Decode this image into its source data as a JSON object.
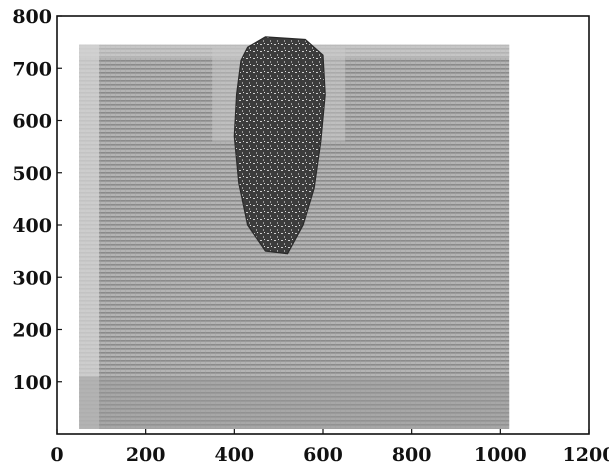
{
  "chart_data": {
    "type": "heatmap",
    "title": "",
    "xlabel": "",
    "ylabel": "",
    "xlim": [
      0,
      1200
    ],
    "ylim": [
      0,
      800
    ],
    "x_ticks": [
      0,
      200,
      400,
      600,
      800,
      1000,
      1200
    ],
    "x_tick_labels": [
      "0",
      "200",
      "400",
      "600",
      "800",
      "1000",
      "1200"
    ],
    "y_ticks": [
      100,
      200,
      300,
      400,
      500,
      600,
      700,
      800
    ],
    "y_tick_labels": [
      "100",
      "200",
      "300",
      "400",
      "500",
      "600",
      "700",
      "800"
    ],
    "grid": false,
    "field_extent": {
      "x": [
        50,
        1020
      ],
      "y": [
        10,
        745
      ]
    },
    "dark_region": {
      "description_shape": "plume",
      "x_range": [
        400,
        620
      ],
      "y_range": [
        340,
        760
      ],
      "outline": [
        [
          430,
          740
        ],
        [
          470,
          760
        ],
        [
          560,
          755
        ],
        [
          600,
          725
        ],
        [
          605,
          650
        ],
        [
          595,
          560
        ],
        [
          580,
          470
        ],
        [
          555,
          400
        ],
        [
          520,
          345
        ],
        [
          470,
          350
        ],
        [
          430,
          400
        ],
        [
          410,
          480
        ],
        [
          400,
          570
        ],
        [
          405,
          650
        ],
        [
          415,
          715
        ]
      ]
    },
    "colors": {
      "background_field": "#a6a6a6",
      "light_band": "#d6d6d6",
      "dark_region": "#3a3a3a",
      "axis": "#111111"
    }
  }
}
